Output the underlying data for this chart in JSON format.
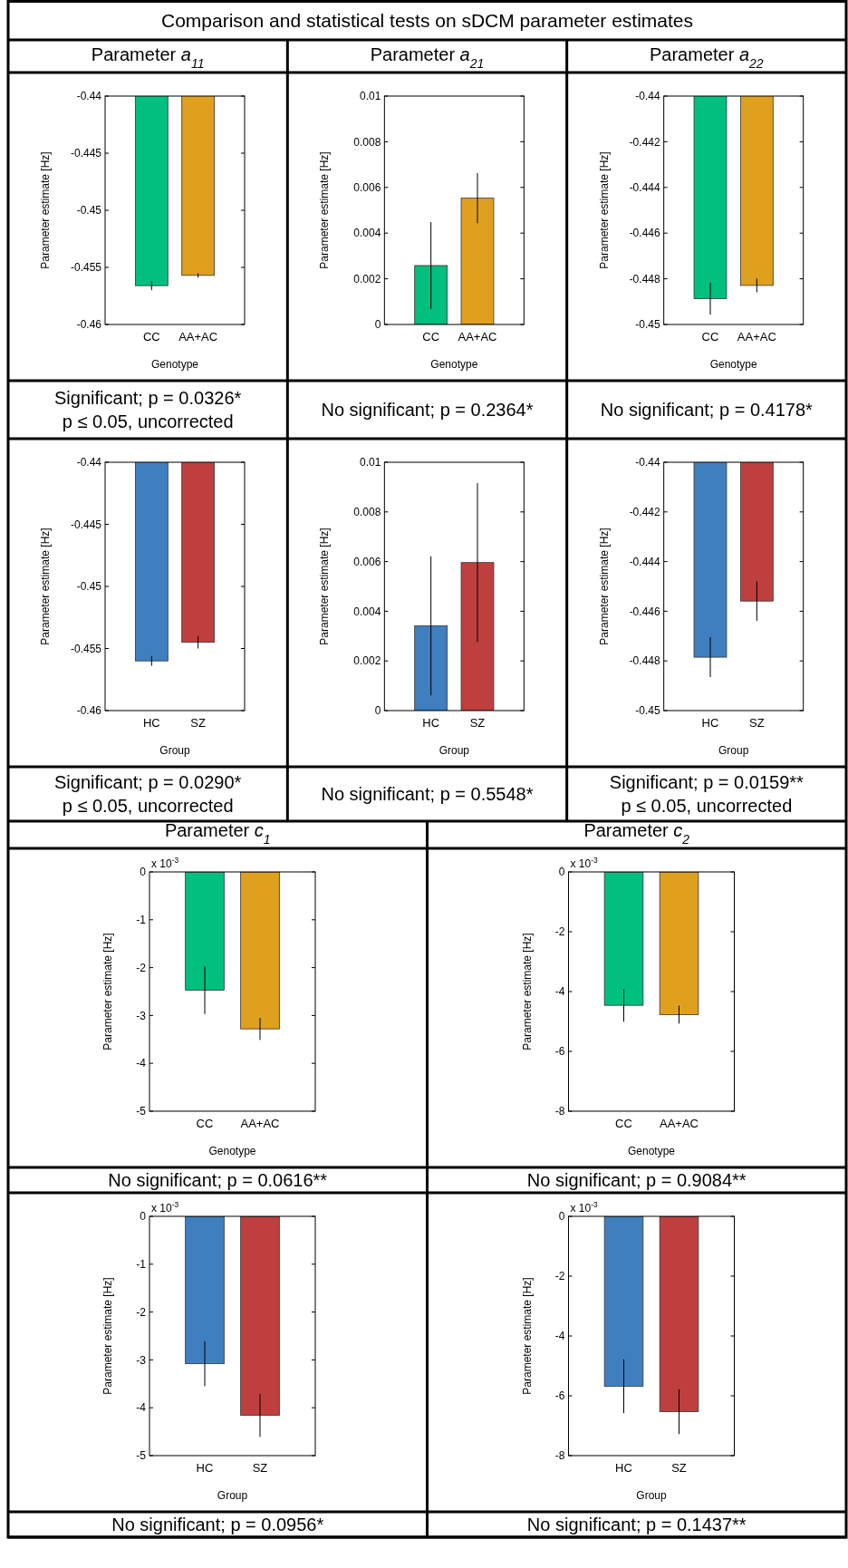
{
  "chart_data": [
    {
      "type": "bar",
      "title": "Comparison and statistical tests on sDCM parameter estimates",
      "subtitle": "Parameter a$_{11}$",
      "xlabel": "Genotype",
      "ylabel": "Parameter estimate [Hz]",
      "categories": [
        "CC",
        "AA+AC"
      ],
      "values": [
        -0.4566,
        -0.4557
      ],
      "errors": [
        0.0004,
        0.0002
      ],
      "colors": [
        "#00bf7f",
        "#dfa020"
      ],
      "ylim": [
        -0.46,
        -0.44
      ],
      "yticks": [
        -0.46,
        -0.455,
        -0.45,
        -0.445,
        -0.44
      ],
      "annotations": [
        "Significant; p = 0.0326*",
        "p ≤ 0.05, uncorrected"
      ]
    },
    {
      "type": "bar",
      "subtitle": "Parameter a$_{21}$",
      "xlabel": "Genotype",
      "ylabel": "Parameter estimate [Hz]",
      "categories": [
        "CC",
        "AA+AC"
      ],
      "values": [
        0.00258,
        0.00553
      ],
      "errors": [
        0.0019,
        0.0011
      ],
      "colors": [
        "#00bf7f",
        "#dfa020"
      ],
      "ylim": [
        0,
        0.01
      ],
      "yticks": [
        0,
        0.002,
        0.004,
        0.006,
        0.008,
        0.01
      ],
      "annotations": [
        "No significant; p = 0.2364*"
      ]
    },
    {
      "type": "bar",
      "subtitle": "Parameter a$_{22}$",
      "xlabel": "Genotype",
      "ylabel": "Parameter estimate [Hz]",
      "categories": [
        "CC",
        "AA+AC"
      ],
      "values": [
        -0.44887,
        -0.44829
      ],
      "errors": [
        0.0007,
        0.0003
      ],
      "colors": [
        "#00bf7f",
        "#dfa020"
      ],
      "ylim": [
        -0.45,
        -0.44
      ],
      "yticks": [
        -0.45,
        -0.448,
        -0.446,
        -0.444,
        -0.442,
        -0.44
      ],
      "annotations": [
        "No significant; p = 0.4178*"
      ]
    },
    {
      "type": "bar",
      "xlabel": "Group",
      "ylabel": "Parameter estimate [Hz]",
      "categories": [
        "HC",
        "SZ"
      ],
      "values": [
        -0.456,
        -0.4545
      ],
      "errors": [
        0.0004,
        0.0005
      ],
      "colors": [
        "#3f7fbf",
        "#bf3f3f"
      ],
      "ylim": [
        -0.46,
        -0.44
      ],
      "yticks": [
        -0.46,
        -0.455,
        -0.45,
        -0.445,
        -0.44
      ],
      "annotations": [
        "Significant; p = 0.0290*",
        "p ≤ 0.05, uncorrected"
      ]
    },
    {
      "type": "bar",
      "xlabel": "Group",
      "ylabel": "Parameter estimate [Hz]",
      "categories": [
        "HC",
        "SZ"
      ],
      "values": [
        0.00341,
        0.00596
      ],
      "errors": [
        0.0028,
        0.0032
      ],
      "colors": [
        "#3f7fbf",
        "#bf3f3f"
      ],
      "ylim": [
        0,
        0.01
      ],
      "yticks": [
        0,
        0.002,
        0.004,
        0.006,
        0.008,
        0.01
      ],
      "annotations": [
        "No significant; p = 0.5548*"
      ]
    },
    {
      "type": "bar",
      "xlabel": "Group",
      "ylabel": "Parameter estimate [Hz]",
      "categories": [
        "HC",
        "SZ"
      ],
      "values": [
        -0.44785,
        -0.44559
      ],
      "errors": [
        0.0008,
        0.0008
      ],
      "colors": [
        "#3f7fbf",
        "#bf3f3f"
      ],
      "ylim": [
        -0.45,
        -0.44
      ],
      "yticks": [
        -0.45,
        -0.448,
        -0.446,
        -0.444,
        -0.442,
        -0.44
      ],
      "annotations": [
        "Significant; p = 0.0159**",
        "p ≤ 0.05, uncorrected"
      ]
    },
    {
      "type": "bar",
      "subtitle": "Parameter c$_{1}$",
      "xlabel": "Genotype",
      "ylabel": "Parameter estimate [Hz]",
      "categories": [
        "CC",
        "AA+AC"
      ],
      "values": [
        -2.47,
        -3.28
      ],
      "errors": [
        0.5,
        0.23
      ],
      "colors": [
        "#00bf7f",
        "#dfa020"
      ],
      "ylim": [
        -5,
        0
      ],
      "yticks": [
        -5,
        -4,
        -3,
        -2,
        -1,
        0
      ],
      "annotations": [
        "x 10$^{-3}$",
        "No significant; p = 0.0616**"
      ]
    },
    {
      "type": "bar",
      "subtitle": "Parameter c$_{2}$",
      "xlabel": "Genotype",
      "ylabel": "Parameter estimate [Hz]",
      "categories": [
        "CC",
        "AA+AC"
      ],
      "values": [
        -4.46,
        -4.77
      ],
      "errors": [
        0.55,
        0.3
      ],
      "colors": [
        "#00bf7f",
        "#dfa020"
      ],
      "ylim": [
        -8,
        0
      ],
      "yticks": [
        -8,
        -6,
        -4,
        -2,
        0
      ],
      "annotations": [
        "x 10$^{-3}$",
        "No significant; p = 0.9084**"
      ]
    },
    {
      "type": "bar",
      "xlabel": "Group",
      "ylabel": "Parameter estimate [Hz]",
      "categories": [
        "HC",
        "SZ"
      ],
      "values": [
        -3.08,
        -4.16
      ],
      "errors": [
        0.47,
        0.45
      ],
      "colors": [
        "#3f7fbf",
        "#bf3f3f"
      ],
      "ylim": [
        -5,
        0
      ],
      "yticks": [
        -5,
        -4,
        -3,
        -2,
        -1,
        0
      ],
      "annotations": [
        "x 10$^{-3}$",
        "No significant; p = 0.0956*"
      ]
    },
    {
      "type": "bar",
      "xlabel": "Group",
      "ylabel": "Parameter estimate [Hz]",
      "categories": [
        "HC",
        "SZ"
      ],
      "values": [
        -5.68,
        -6.53
      ],
      "errors": [
        0.9,
        0.75
      ],
      "colors": [
        "#3f7fbf",
        "#bf3f3f"
      ],
      "ylim": [
        -8,
        0
      ],
      "yticks": [
        -8,
        -6,
        -4,
        -2,
        0
      ],
      "annotations": [
        "x 10$^{-3}$",
        "No significant; p = 0.1437**"
      ]
    }
  ]
}
